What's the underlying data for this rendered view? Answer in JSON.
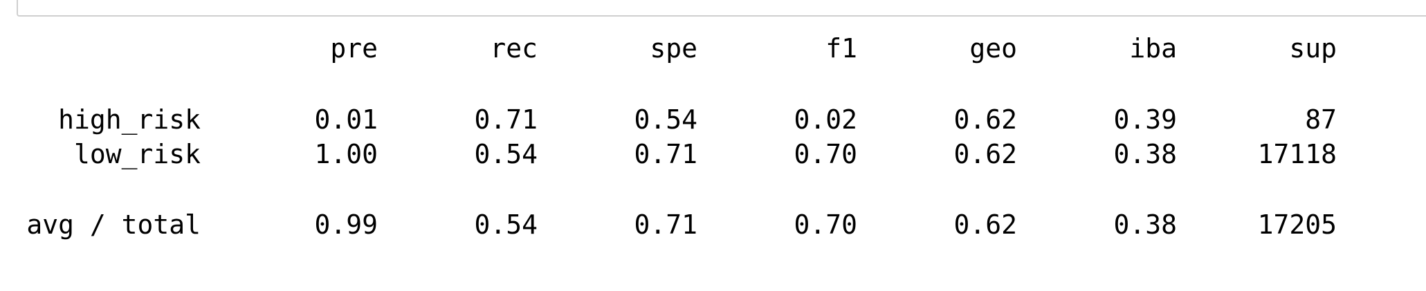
{
  "report": {
    "columns": [
      "pre",
      "rec",
      "spe",
      "f1",
      "geo",
      "iba",
      "sup"
    ],
    "rows": [
      {
        "label": "high_risk",
        "values": [
          "0.01",
          "0.71",
          "0.54",
          "0.02",
          "0.62",
          "0.39",
          "87"
        ]
      },
      {
        "label": "low_risk",
        "values": [
          "1.00",
          "0.54",
          "0.71",
          "0.70",
          "0.62",
          "0.38",
          "17118"
        ]
      }
    ],
    "total": {
      "label": "avg / total",
      "values": [
        "0.99",
        "0.54",
        "0.71",
        "0.70",
        "0.62",
        "0.38",
        "17205"
      ]
    }
  }
}
